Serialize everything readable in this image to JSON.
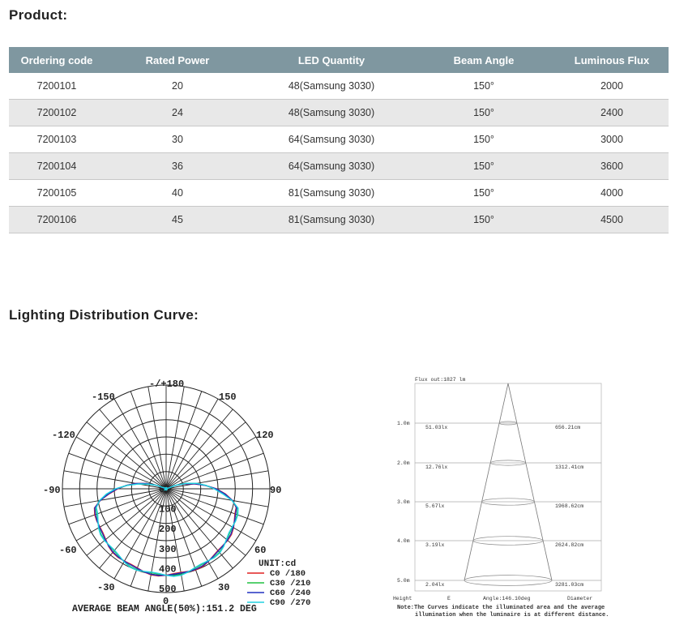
{
  "product_heading": "Product:",
  "table": {
    "headers": [
      "Ordering code",
      "Rated Power",
      "LED Quantity",
      "Beam Angle",
      "Luminous Flux"
    ],
    "rows": [
      [
        "7200101",
        "20",
        "48(Samsung 3030)",
        "150°",
        "2000"
      ],
      [
        "7200102",
        "24",
        "48(Samsung 3030)",
        "150°",
        "2400"
      ],
      [
        "7200103",
        "30",
        "64(Samsung 3030)",
        "150°",
        "3000"
      ],
      [
        "7200104",
        "36",
        "64(Samsung 3030)",
        "150°",
        "3600"
      ],
      [
        "7200105",
        "40",
        "81(Samsung 3030)",
        "150°",
        "4000"
      ],
      [
        "7200106",
        "45",
        "81(Samsung 3030)",
        "150°",
        "4500"
      ]
    ]
  },
  "distribution_heading": "Lighting Distribution Curve:",
  "polar": {
    "angle_labels": {
      "top": "-/+180",
      "m150": "-150",
      "p150": "150",
      "m120": "-120",
      "p120": "120",
      "m90": "-90",
      "p90": "90",
      "m60": "-60",
      "p60": "60",
      "m30": "-30",
      "p30": "30",
      "bottom": "0"
    },
    "radial_labels": [
      "0",
      "100",
      "200",
      "300",
      "400",
      "500"
    ],
    "unit": "UNIT:cd",
    "legend": [
      {
        "label": "C0  /180",
        "color": "#e02020"
      },
      {
        "label": "C30 /210",
        "color": "#20c040"
      },
      {
        "label": "C60 /240",
        "color": "#2030c0"
      },
      {
        "label": "C90 /270",
        "color": "#20d0e0"
      }
    ],
    "beam_angle_text": "AVERAGE BEAM ANGLE(50%):151.2 DEG"
  },
  "cone": {
    "flux": "Flux out:1827 lm",
    "rows": [
      {
        "height": "1.0m",
        "lux": "51.03lx",
        "diameter": "656.21cm"
      },
      {
        "height": "2.0m",
        "lux": "12.76lx",
        "diameter": "1312.41cm"
      },
      {
        "height": "3.0m",
        "lux": "5.67lx",
        "diameter": "1968.62cm"
      },
      {
        "height": "4.0m",
        "lux": "3.19lx",
        "diameter": "2624.82cm"
      },
      {
        "height": "5.0m",
        "lux": "2.04lx",
        "diameter": "3281.03cm"
      }
    ],
    "footer": {
      "height": "Height",
      "e": "E",
      "angle": "Angle:146.10deg",
      "diameter": "Diameter"
    },
    "note_line1": "Note:The Curves indicate the illuminated area and the average",
    "note_line2": "illumination when the luminaire is at different distance."
  }
}
